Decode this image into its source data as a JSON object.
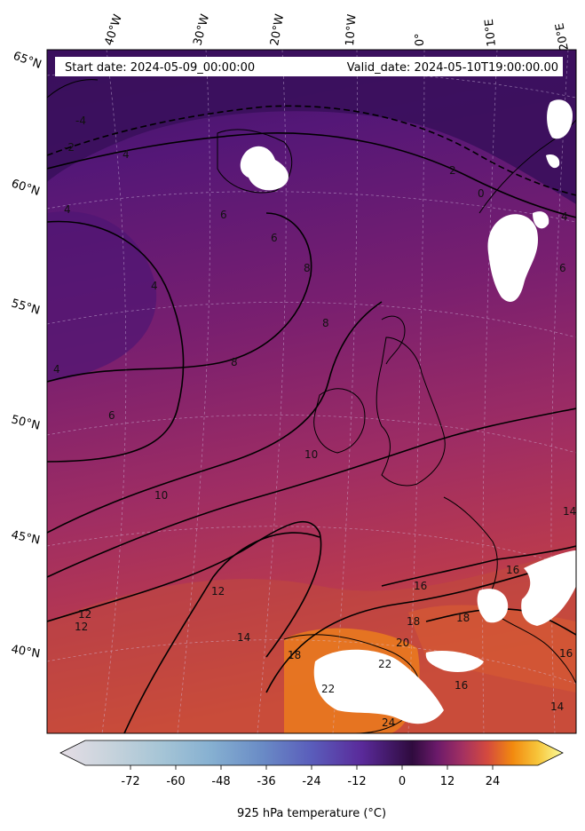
{
  "map": {
    "header": {
      "start_label": "Start date: 2024-05-09_00:00:00",
      "valid_label": "Valid_date: 2024-05-10T19:00:00.00"
    },
    "lon_labels": [
      "40°W",
      "30°W",
      "20°W",
      "10°W",
      "0°",
      "10°E",
      "20°E"
    ],
    "lat_labels": [
      "65°N",
      "60°N",
      "55°N",
      "50°N",
      "45°N",
      "40°N"
    ],
    "contour_labels": [
      "-4",
      "-2",
      "4",
      "4",
      "4",
      "4",
      "6",
      "6",
      "6",
      "8",
      "8",
      "8",
      "10",
      "10",
      "12",
      "12",
      "14",
      "14",
      "16",
      "16",
      "16",
      "18",
      "18",
      "20",
      "22",
      "22",
      "24",
      "2",
      "0",
      "6",
      "4",
      "18",
      "14",
      "16",
      "12"
    ],
    "colors": {
      "cold": "#3f1466",
      "mid": "#6d1f75",
      "warm": "#a8335f",
      "hot": "#e46b25",
      "land_mask": "#ffffff"
    }
  },
  "colorbar": {
    "ticks": [
      "-72",
      "-60",
      "-48",
      "-36",
      "-24",
      "-12",
      "0",
      "12",
      "24"
    ],
    "title": "925 hPa temperature ($^\\circ$C)",
    "title_display": "925 hPa temperature (°C)",
    "range": [
      -84,
      36
    ],
    "stops": [
      {
        "t": -84,
        "c": "#e5dde5"
      },
      {
        "t": -72,
        "c": "#c7d3dc"
      },
      {
        "t": -60,
        "c": "#a6c5d6"
      },
      {
        "t": -48,
        "c": "#86b0d1"
      },
      {
        "t": -36,
        "c": "#6a8cc6"
      },
      {
        "t": -24,
        "c": "#5a5dbb"
      },
      {
        "t": -12,
        "c": "#5a2a9a"
      },
      {
        "t": 0,
        "c": "#2f0b3e"
      },
      {
        "t": 6,
        "c": "#6b1a6a"
      },
      {
        "t": 12,
        "c": "#a33062"
      },
      {
        "t": 18,
        "c": "#d44a3e"
      },
      {
        "t": 24,
        "c": "#f2890f"
      },
      {
        "t": 30,
        "c": "#f7c53a"
      },
      {
        "t": 36,
        "c": "#fafc9c"
      }
    ]
  }
}
